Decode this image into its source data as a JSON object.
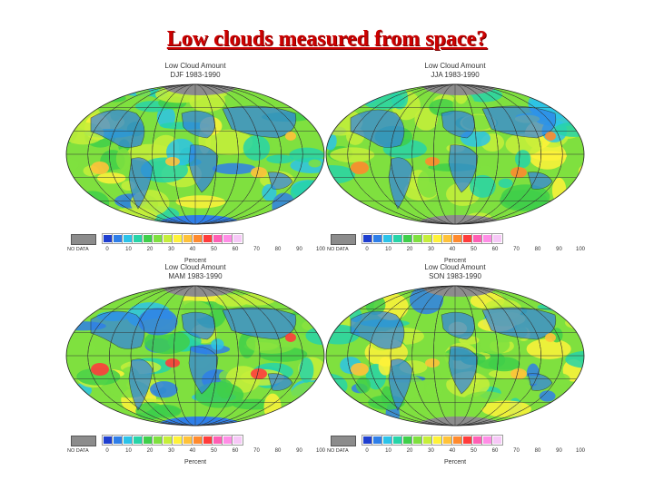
{
  "slide": {
    "title": "Low clouds measured from space?"
  },
  "colors": {
    "title": "#cc0000",
    "scale": [
      "#1f3fd0",
      "#2f7fe8",
      "#2cc3e8",
      "#27d4a8",
      "#3fcf4a",
      "#7fe03f",
      "#c6ee3a",
      "#fff23a",
      "#ffc23a",
      "#ff8a2e",
      "#ff3c3c",
      "#ff5fb4",
      "#ff8ee6",
      "#f7c8f7"
    ],
    "no_data": "#8c8c8c"
  },
  "legend": {
    "no_data_label": "NO DATA",
    "ticks": [
      "0",
      "10",
      "20",
      "30",
      "40",
      "50",
      "60",
      "70",
      "80",
      "90",
      "100"
    ]
  },
  "panels": [
    {
      "title_line1": "Low Cloud Amount",
      "title_line2": "DJF 1983-1990",
      "unit_label": "Percent"
    },
    {
      "title_line1": "Low Cloud Amount",
      "title_line2": "JJA 1983-1990",
      "unit_label": "Percent"
    },
    {
      "title_line1": "Low Cloud Amount",
      "title_line2": "MAM 1983-1990",
      "unit_label": "Percent"
    },
    {
      "title_line1": "Low Cloud Amount",
      "title_line2": "SON 1983-1990",
      "unit_label": "Percent"
    }
  ]
}
